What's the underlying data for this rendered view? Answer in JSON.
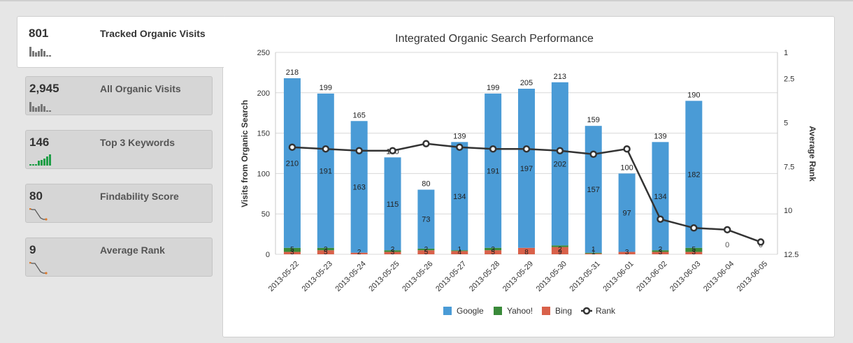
{
  "tiles": [
    {
      "value": "801",
      "label": "Tracked Organic Visits",
      "spark": "bars-gray-icon"
    },
    {
      "value": "2,945",
      "label": "All Organic Visits",
      "spark": "bars-gray-icon"
    },
    {
      "value": "146",
      "label": "Top 3 Keywords",
      "spark": "bars-green-icon"
    },
    {
      "value": "80",
      "label": "Findability Score",
      "spark": "line-orange-icon"
    },
    {
      "value": "9",
      "label": "Average Rank",
      "spark": "line-orange-icon"
    }
  ],
  "colors": {
    "google": "#4a9bd6",
    "yahoo": "#3a8a3a",
    "bing": "#d9614a",
    "rank": "#333333",
    "spark_gray": "#777777",
    "spark_green": "#1e9e46",
    "spark_orange": "#e07a2a"
  },
  "chart_data": {
    "type": "bar",
    "title": "Integrated Organic Search Performance",
    "xlabel": "",
    "ylabel": "Visits from Organic Search",
    "y2label": "Average Rank",
    "ylim": [
      0,
      250
    ],
    "yticks": [
      "0",
      "50",
      "100",
      "150",
      "200",
      "250"
    ],
    "y2lim": [
      1,
      12.5
    ],
    "y2ticks": [
      "1",
      "2.5",
      "5",
      "7.5",
      "10",
      "12.5"
    ],
    "categories": [
      "2013-05-22",
      "2013-05-23",
      "2013-05-24",
      "2013-05-25",
      "2013-05-26",
      "2013-05-27",
      "2013-05-28",
      "2013-05-29",
      "2013-05-30",
      "2013-05-31",
      "2013-06-01",
      "2013-06-02",
      "2013-06-03",
      "2013-06-04",
      "2013-06-05"
    ],
    "totals": [
      "218",
      "199",
      "165",
      "120",
      "80",
      "139",
      "199",
      "205",
      "213",
      "159",
      "100",
      "139",
      "190",
      "0",
      "0"
    ],
    "series": [
      {
        "name": "Google",
        "values": [
          210,
          191,
          163,
          115,
          73,
          134,
          191,
          197,
          202,
          157,
          97,
          134,
          182,
          0,
          0
        ],
        "labels": [
          "210",
          "191",
          "163",
          "115",
          "73",
          "134",
          "191",
          "197",
          "202",
          "157",
          "97",
          "134",
          "182",
          "",
          ""
        ]
      },
      {
        "name": "Yahoo!",
        "values": [
          5,
          3,
          0,
          2,
          2,
          1,
          3,
          0,
          2,
          1,
          0,
          2,
          5,
          0,
          0
        ],
        "labels": [
          "5",
          "3",
          "",
          "2",
          "2",
          "1",
          "3",
          "",
          "2",
          "1",
          "",
          "2",
          "5",
          "",
          ""
        ]
      },
      {
        "name": "Bing",
        "values": [
          3,
          5,
          2,
          3,
          5,
          4,
          5,
          8,
          9,
          1,
          3,
          3,
          3,
          0,
          0
        ],
        "labels": [
          "3",
          "5",
          "2",
          "3",
          "5",
          "4",
          "5",
          "8",
          "9",
          "1",
          "3",
          "3",
          "3",
          "",
          ""
        ]
      },
      {
        "name": "Rank",
        "type": "line",
        "values": [
          6.4,
          6.5,
          6.6,
          6.6,
          6.2,
          6.4,
          6.5,
          6.5,
          6.6,
          6.8,
          6.5,
          10.5,
          11.0,
          11.1,
          11.8
        ]
      }
    ],
    "legend": [
      "Google",
      "Yahoo!",
      "Bing",
      "Rank"
    ],
    "legend_position": "bottom"
  }
}
